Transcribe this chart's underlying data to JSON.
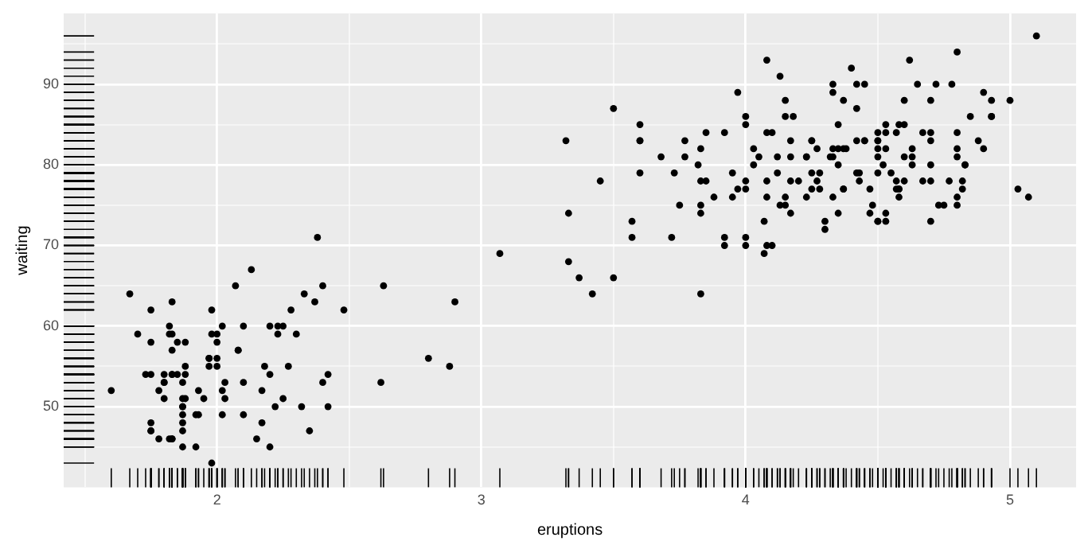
{
  "chart_data": {
    "type": "scatter",
    "xlabel": "eruptions",
    "ylabel": "waiting",
    "xlim": [
      1.42,
      5.25
    ],
    "ylim": [
      40,
      98.8
    ],
    "xticks": [
      {
        "value": 1.5,
        "label": null
      },
      2,
      {
        "value": 2.5,
        "label": null
      },
      3,
      {
        "value": 3.5,
        "label": null
      },
      4,
      {
        "value": 4.5,
        "label": null
      },
      5
    ],
    "yticks": [
      {
        "value": 45,
        "label": null
      },
      50,
      {
        "value": 55,
        "label": null
      },
      60,
      {
        "value": 65,
        "label": null
      },
      70,
      {
        "value": 75,
        "label": null
      },
      80,
      {
        "value": 85,
        "label": null
      },
      90,
      {
        "value": 95,
        "label": null
      }
    ],
    "grid": true,
    "marker": "circle",
    "legend": false,
    "series": [
      {
        "color": "#000000",
        "x": [
          3.6,
          1.8,
          3.33,
          2.28,
          4.53,
          2.88,
          4.7,
          3.6,
          1.95,
          4.35,
          1.83,
          3.92,
          4.2,
          1.75,
          4.7,
          2.17,
          1.75,
          4.8,
          1.6,
          4.25,
          1.8,
          1.75,
          3.45,
          3.07,
          4.53,
          3.6,
          1.97,
          4.08,
          3.85,
          4.43,
          4.3,
          4.47,
          3.37,
          4.03,
          3.83,
          2.02,
          1.87,
          4.83,
          1.83,
          4.78,
          4.35,
          1.88,
          4.57,
          1.75,
          4.53,
          3.32,
          3.83,
          2.1,
          4.63,
          2,
          4.8,
          4.72,
          1.83,
          4.83,
          1.73,
          4.88,
          3.72,
          1.67,
          4.57,
          4.32,
          2.23,
          4.5,
          1.75,
          4.8,
          1.82,
          4.4,
          4.17,
          4.7,
          2.07,
          4.7,
          4.03,
          1.97,
          4.5,
          4,
          1.98,
          5.07,
          2.02,
          4.57,
          3.88,
          3.6,
          4.13,
          4.33,
          4.1,
          2.63,
          4.07,
          4.93,
          3.95,
          4.52,
          2.17,
          4,
          2.2,
          4.33,
          1.87,
          4.82,
          1.83,
          4.3,
          4.67,
          3.75,
          1.87,
          4.9,
          2.48,
          4.37,
          2.1,
          4.5,
          4.05,
          1.87,
          4.7,
          1.78,
          4.85,
          3.68,
          4.73,
          2.3,
          4.9,
          4.42,
          1.7,
          4.63,
          2.32,
          4.6,
          1.82,
          4.42,
          2.62,
          4.07,
          4.25,
          1.97,
          4.6,
          3.77,
          1.92,
          4.5,
          2.27,
          4.65,
          1.87,
          4.17,
          2.8,
          4.33,
          1.83,
          4.38,
          1.88,
          4.93,
          2.03,
          3.73,
          4.23,
          2.23,
          4.53,
          4.82,
          4.33,
          1.98,
          4.63,
          2.02,
          5.1,
          1.8,
          5.03,
          4,
          2.4,
          4.6,
          3.57,
          4,
          4.5,
          4.08,
          1.8,
          3.97,
          2.2,
          4.15,
          2,
          3.83,
          3.5,
          4.58,
          2.37,
          5,
          1.93,
          4.62,
          1.92,
          2.08,
          4.58,
          3.33,
          4.17,
          4.33,
          4.5,
          2.42,
          4,
          4.17,
          1.88,
          4.58,
          4.25,
          3.77,
          2.03,
          4.43,
          4.08,
          1.83,
          4.42,
          2.18,
          4.8,
          1.83,
          4.8,
          4.1,
          3.97,
          4.23,
          3.5,
          4.37,
          2.25,
          4.67,
          2.1,
          4.35,
          4.13,
          1.87,
          4.6,
          1.78,
          4.37,
          3.85,
          1.93,
          4.5,
          2.38,
          4.7,
          1.87,
          3.83,
          3.42,
          4.23,
          2.4,
          4.8,
          2,
          4.15,
          1.87,
          4.27,
          1.75,
          4.48,
          4,
          4.12,
          4.08,
          4.27,
          3.92,
          4.55,
          4.08,
          2.42,
          4.18,
          2.22,
          4.45,
          1.88,
          1.85,
          4.28,
          3.95,
          2.33,
          4.15,
          2.35,
          4.93,
          2.9,
          4.58,
          3.83,
          2.08,
          4.37,
          2.13,
          4.35,
          2.2,
          4.45,
          3.57,
          4.5,
          4.15,
          3.82,
          3.92,
          4.45,
          2,
          4.28,
          4.77,
          4.53,
          1.85,
          4.25,
          1.98,
          2.25,
          4.75,
          4.12,
          2.15,
          4.42,
          1.82,
          4.47
        ],
        "values": [
          79,
          54,
          74,
          62,
          85,
          55,
          88,
          85,
          51,
          85,
          54,
          84,
          78,
          47,
          83,
          52,
          62,
          84,
          52,
          79,
          51,
          47,
          78,
          69,
          74,
          83,
          55,
          76,
          78,
          79,
          73,
          77,
          66,
          80,
          74,
          52,
          48,
          80,
          59,
          90,
          80,
          58,
          84,
          58,
          73,
          83,
          64,
          53,
          82,
          59,
          75,
          90,
          54,
          80,
          54,
          83,
          71,
          64,
          77,
          81,
          59,
          84,
          48,
          82,
          60,
          92,
          78,
          78,
          65,
          73,
          82,
          56,
          79,
          71,
          62,
          76,
          60,
          78,
          76,
          83,
          75,
          82,
          70,
          65,
          73,
          88,
          76,
          80,
          48,
          86,
          60,
          90,
          50,
          78,
          63,
          72,
          84,
          75,
          51,
          82,
          62,
          88,
          49,
          83,
          81,
          47,
          84,
          52,
          86,
          81,
          75,
          59,
          89,
          79,
          59,
          81,
          50,
          85,
          59,
          87,
          53,
          69,
          77,
          56,
          88,
          81,
          45,
          82,
          55,
          90,
          45,
          83,
          56,
          89,
          46,
          82,
          51,
          86,
          53,
          79,
          81,
          60,
          82,
          77,
          76,
          59,
          80,
          49,
          96,
          53,
          77,
          77,
          65,
          81,
          71,
          70,
          81,
          93,
          53,
          89,
          45,
          86,
          58,
          78,
          66,
          76,
          63,
          88,
          52,
          93,
          49,
          57,
          77,
          68,
          81,
          81,
          73,
          50,
          85,
          74,
          55,
          77,
          83,
          83,
          51,
          78,
          84,
          46,
          83,
          55,
          81,
          57,
          76,
          84,
          77,
          81,
          87,
          77,
          51,
          78,
          60,
          82,
          91,
          53,
          78,
          46,
          77,
          84,
          49,
          83,
          71,
          80,
          49,
          75,
          64,
          76,
          53,
          94,
          55,
          76,
          50,
          82,
          54,
          75,
          78,
          79,
          78,
          78,
          70,
          79,
          70,
          54,
          86,
          50,
          90,
          54,
          54,
          77,
          79,
          64,
          75,
          47,
          86,
          63,
          85,
          82,
          57,
          82,
          67,
          74,
          54,
          83,
          73,
          73,
          88,
          80,
          71,
          83,
          56,
          79,
          78,
          84,
          58,
          83,
          43,
          60,
          75,
          81,
          46,
          90,
          46,
          74
        ]
      }
    ]
  }
}
